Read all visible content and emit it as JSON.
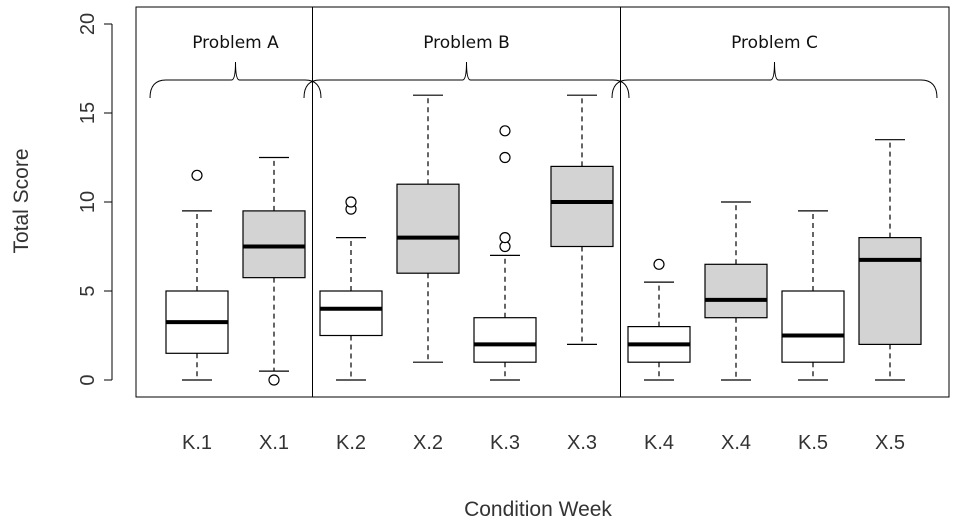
{
  "chart_data": {
    "type": "box",
    "title": "",
    "xlabel": "Condition Week",
    "ylabel": "Total Score",
    "ylim": [
      0,
      20
    ],
    "yticks": [
      0,
      5,
      10,
      15,
      20
    ],
    "colors": {
      "white_box": "#ffffff",
      "gray_box": "#d3d3d3",
      "stroke": "#000000"
    },
    "groups": [
      {
        "label": "Problem A",
        "from": 0,
        "to": 1
      },
      {
        "label": "Problem B",
        "from": 2,
        "to": 5
      },
      {
        "label": "Problem C",
        "from": 6,
        "to": 9
      }
    ],
    "boxes": [
      {
        "label": "K.1",
        "fill": "white",
        "min": 0,
        "q1": 1.5,
        "median": 3.25,
        "q3": 5,
        "max": 9.5,
        "outliers": [
          11.5
        ]
      },
      {
        "label": "X.1",
        "fill": "gray",
        "min": 0.5,
        "q1": 5.75,
        "median": 7.5,
        "q3": 9.5,
        "max": 12.5,
        "outliers": [
          0
        ]
      },
      {
        "label": "K.2",
        "fill": "white",
        "min": 0,
        "q1": 2.5,
        "median": 4,
        "q3": 5,
        "max": 8,
        "outliers": [
          9.6,
          10
        ]
      },
      {
        "label": "X.2",
        "fill": "gray",
        "min": 1,
        "q1": 6,
        "median": 8,
        "q3": 11,
        "max": 16,
        "outliers": []
      },
      {
        "label": "K.3",
        "fill": "white",
        "min": 0,
        "q1": 1,
        "median": 2,
        "q3": 3.5,
        "max": 7,
        "outliers": [
          7.5,
          8,
          12.5,
          14
        ]
      },
      {
        "label": "X.3",
        "fill": "gray",
        "min": 2,
        "q1": 7.5,
        "median": 10,
        "q3": 12,
        "max": 16,
        "outliers": []
      },
      {
        "label": "K.4",
        "fill": "white",
        "min": 0,
        "q1": 1,
        "median": 2,
        "q3": 3,
        "max": 5.5,
        "outliers": [
          6.5
        ]
      },
      {
        "label": "X.4",
        "fill": "gray",
        "min": 0,
        "q1": 3.5,
        "median": 4.5,
        "q3": 6.5,
        "max": 10,
        "outliers": []
      },
      {
        "label": "K.5",
        "fill": "white",
        "min": 0,
        "q1": 1,
        "median": 2.5,
        "q3": 5,
        "max": 9.5,
        "outliers": []
      },
      {
        "label": "X.5",
        "fill": "gray",
        "min": 0,
        "q1": 2,
        "median": 6.75,
        "q3": 8,
        "max": 13.5,
        "outliers": []
      }
    ]
  }
}
